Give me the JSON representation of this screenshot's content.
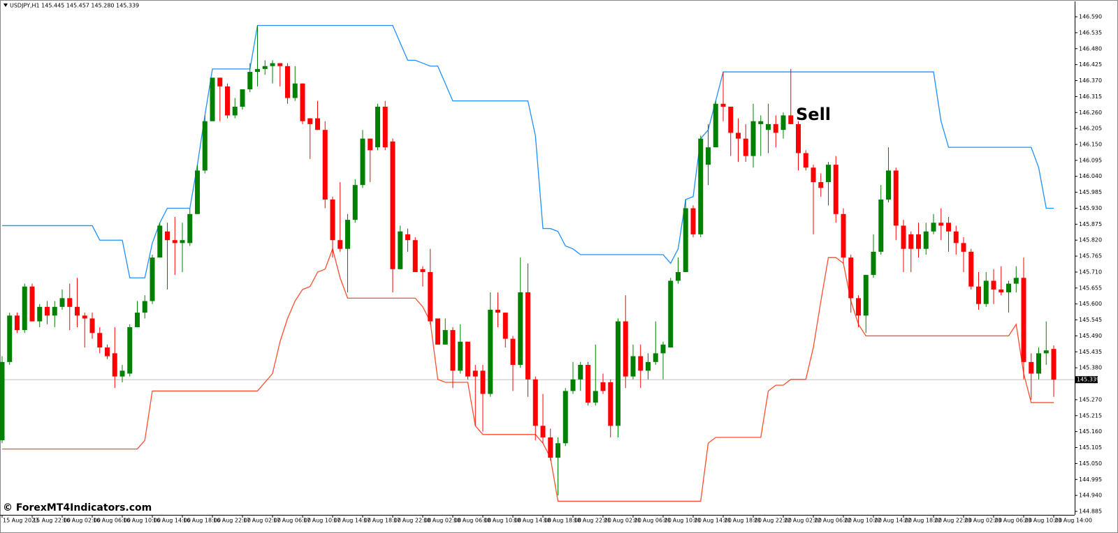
{
  "chart_data": {
    "type": "candlestick",
    "title": "USDJPY,H1  145.445 145.457 145.280 145.339",
    "annotations": [
      "Sell"
    ],
    "watermark": "© ForexMT4Indicators.com",
    "current_price": 145.339,
    "up_color": "#008000",
    "down_color": "#ff0000",
    "ylim": [
      144.873,
      146.643
    ],
    "yticks": [
      {
        "value": 146.59,
        "label": "146.590"
      },
      146.535,
      {
        "value": 146.48,
        "label": "146.480"
      },
      146.425,
      {
        "value": 146.37,
        "label": "146.370"
      },
      146.315,
      {
        "value": 146.26,
        "label": "146.260"
      },
      146.205,
      {
        "value": 146.15,
        "label": "146.150"
      },
      146.095,
      {
        "value": 146.04,
        "label": "146.040"
      },
      145.985,
      {
        "value": 145.93,
        "label": "145.930"
      },
      145.875,
      {
        "value": 145.82,
        "label": "145.820"
      },
      145.765,
      {
        "value": 145.71,
        "label": "145.710"
      },
      145.655,
      {
        "value": 145.6,
        "label": "145.600"
      },
      145.545,
      {
        "value": 145.49,
        "label": "145.490"
      },
      145.435,
      {
        "value": 145.38,
        "label": "145.380"
      },
      {
        "value": 145.27,
        "label": "145.270"
      },
      145.215,
      {
        "value": 145.16,
        "label": "145.160"
      },
      145.105,
      {
        "value": 145.05,
        "label": "145.050"
      },
      144.995,
      {
        "value": 144.94,
        "label": "144.940"
      },
      144.885
    ],
    "categories": [
      "15 Aug 2023",
      null,
      null,
      null,
      "15 Aug 22:00",
      null,
      null,
      null,
      "16 Aug 02:00",
      null,
      null,
      null,
      "16 Aug 06:00",
      null,
      null,
      null,
      "16 Aug 10:00",
      null,
      null,
      null,
      "16 Aug 14:00",
      null,
      null,
      null,
      "16 Aug 18:00",
      null,
      null,
      null,
      "16 Aug 22:00",
      null,
      null,
      null,
      "17 Aug 02:00",
      null,
      null,
      null,
      "17 Aug 06:00",
      null,
      null,
      null,
      "17 Aug 10:00",
      null,
      null,
      null,
      "17 Aug 14:00",
      null,
      null,
      null,
      "17 Aug 18:00",
      null,
      null,
      null,
      "17 Aug 22:00",
      null,
      null,
      null,
      "18 Aug 02:00",
      null,
      null,
      null,
      "18 Aug 06:00",
      null,
      null,
      null,
      "18 Aug 10:00",
      null,
      null,
      null,
      "18 Aug 14:00",
      null,
      null,
      null,
      "18 Aug 18:00",
      null,
      null,
      null,
      "18 Aug 22:00",
      null,
      null,
      null,
      "21 Aug 02:00",
      null,
      null,
      null,
      "21 Aug 06:00",
      null,
      null,
      null,
      "21 Aug 10:00",
      null,
      null,
      null,
      "21 Aug 14:00",
      null,
      null,
      null,
      "21 Aug 18:00",
      null,
      null,
      null,
      "21 Aug 22:00",
      null,
      null,
      null,
      "22 Aug 02:00",
      null,
      null,
      null,
      "22 Aug 06:00",
      null,
      null,
      null,
      "22 Aug 10:00",
      null,
      null,
      null,
      "22 Aug 14:00",
      null,
      null,
      null,
      "22 Aug 18:00",
      null,
      null,
      null,
      "22 Aug 22:00",
      null,
      null,
      null,
      "23 Aug 02:00",
      null,
      null,
      null,
      "23 Aug 06:00",
      null,
      null,
      null,
      "23 Aug 10:00",
      null,
      null,
      null,
      "23 Aug 14:00"
    ],
    "open": [
      145.13,
      145.4,
      145.56,
      145.51,
      145.66,
      145.54,
      145.59,
      145.56,
      145.59,
      145.62,
      145.59,
      145.56,
      145.55,
      145.5,
      145.45,
      145.43,
      145.35,
      145.36,
      145.52,
      145.57,
      145.61,
      145.76,
      145.85,
      145.82,
      145.81,
      145.81,
      145.91,
      146.06,
      146.23,
      146.38,
      146.35,
      146.25,
      146.28,
      146.34,
      146.4,
      146.41,
      146.42,
      146.43,
      146.42,
      146.31,
      146.36,
      146.24,
      146.24,
      146.2,
      145.96,
      145.82,
      145.79,
      145.89,
      146.01,
      146.17,
      146.14,
      146.28,
      146.16,
      145.72,
      145.84,
      145.82,
      145.72,
      145.71,
      145.55,
      145.46,
      145.51,
      145.37,
      145.47,
      145.37,
      145.37,
      145.29,
      145.58,
      145.57,
      145.48,
      145.39,
      145.64,
      145.34,
      145.18,
      145.14,
      145.07,
      145.12,
      145.3,
      145.34,
      145.39,
      145.26,
      145.33,
      145.33,
      145.18,
      145.54,
      145.35,
      145.42,
      145.37,
      145.4,
      145.43,
      145.45,
      145.68,
      145.71,
      145.93,
      145.84,
      146.08,
      146.14,
      146.29,
      146.28,
      146.19,
      146.17,
      146.11,
      146.22,
      146.2,
      146.22,
      146.2,
      146.25,
      146.22,
      146.12,
      146.07,
      146.02,
      146.02,
      146.08,
      145.91,
      145.76,
      145.62,
      145.56,
      145.7,
      145.78,
      145.96,
      146.06,
      145.87,
      145.84,
      145.84,
      145.79,
      145.85,
      145.88,
      145.88,
      145.85,
      145.81,
      145.78,
      145.66,
      145.6,
      145.68,
      145.65,
      145.64,
      145.67,
      145.69,
      145.4,
      145.36,
      145.43,
      145.445
    ],
    "high": [
      145.42,
      145.57,
      145.57,
      145.67,
      145.67,
      145.6,
      145.61,
      145.61,
      145.65,
      145.67,
      145.69,
      145.57,
      145.57,
      145.52,
      145.46,
      145.52,
      145.39,
      145.53,
      145.61,
      145.63,
      145.77,
      145.88,
      145.88,
      145.9,
      145.88,
      145.93,
      146.08,
      146.25,
      146.38,
      146.38,
      146.36,
      146.31,
      146.34,
      146.43,
      146.56,
      146.44,
      146.44,
      146.43,
      146.43,
      146.42,
      146.36,
      146.24,
      146.3,
      146.23,
      145.97,
      146.02,
      145.91,
      146.03,
      146.2,
      146.17,
      146.29,
      146.3,
      146.17,
      145.87,
      145.86,
      145.83,
      145.73,
      145.79,
      145.55,
      145.55,
      145.52,
      145.53,
      145.47,
      145.39,
      145.39,
      145.64,
      145.64,
      145.57,
      145.49,
      145.76,
      145.74,
      145.35,
      145.29,
      145.17,
      145.14,
      145.31,
      145.4,
      145.4,
      145.4,
      145.46,
      145.36,
      145.34,
      145.55,
      145.63,
      145.46,
      145.46,
      145.43,
      145.54,
      145.47,
      145.69,
      145.76,
      145.96,
      145.94,
      146.18,
      146.22,
      146.3,
      146.4,
      146.28,
      146.24,
      146.22,
      146.29,
      146.25,
      146.29,
      146.25,
      146.26,
      146.41,
      146.23,
      146.13,
      146.08,
      146.05,
      146.09,
      146.11,
      145.93,
      145.77,
      145.63,
      145.7,
      145.84,
      146.01,
      146.14,
      146.07,
      145.89,
      145.85,
      145.88,
      145.88,
      145.91,
      145.93,
      145.9,
      145.87,
      145.83,
      145.79,
      145.71,
      145.71,
      145.72,
      145.73,
      145.68,
      145.73,
      145.76,
      145.43,
      145.45,
      145.54,
      145.457
    ],
    "low": [
      145.12,
      145.39,
      145.5,
      145.5,
      145.54,
      145.52,
      145.53,
      145.52,
      145.58,
      145.51,
      145.52,
      145.45,
      145.48,
      145.43,
      145.41,
      145.31,
      145.33,
      145.35,
      145.52,
      145.55,
      145.6,
      145.76,
      145.65,
      145.7,
      145.71,
      145.8,
      145.91,
      146.05,
      146.23,
      146.23,
      146.24,
      146.24,
      146.27,
      146.33,
      146.35,
      146.39,
      146.36,
      146.35,
      146.29,
      146.3,
      146.22,
      146.1,
      146.2,
      145.93,
      145.76,
      145.78,
      145.64,
      145.88,
      146.0,
      146.02,
      146.13,
      146.13,
      145.64,
      145.72,
      145.78,
      145.71,
      145.66,
      145.53,
      145.46,
      145.46,
      145.31,
      145.36,
      145.34,
      145.18,
      145.16,
      145.28,
      145.52,
      145.45,
      145.3,
      145.38,
      145.28,
      145.13,
      145.12,
      145.06,
      144.94,
      145.11,
      145.29,
      145.3,
      145.25,
      145.25,
      145.29,
      145.14,
      145.14,
      145.31,
      145.34,
      145.31,
      145.34,
      145.39,
      145.34,
      145.45,
      145.67,
      145.71,
      145.83,
      145.83,
      146.01,
      146.14,
      146.23,
      146.11,
      146.09,
      146.09,
      146.07,
      146.11,
      146.12,
      146.14,
      146.17,
      146.22,
      146.06,
      146.06,
      145.84,
      145.97,
      145.94,
      145.88,
      145.74,
      145.57,
      145.52,
      145.5,
      145.69,
      145.77,
      145.95,
      145.82,
      145.71,
      145.71,
      145.76,
      145.77,
      145.84,
      145.82,
      145.78,
      145.77,
      145.71,
      145.65,
      145.58,
      145.59,
      145.6,
      145.63,
      145.57,
      145.64,
      145.34,
      145.27,
      145.34,
      145.39,
      145.28
    ],
    "close": [
      145.4,
      145.56,
      145.51,
      145.66,
      145.54,
      145.59,
      145.56,
      145.59,
      145.62,
      145.59,
      145.56,
      145.55,
      145.5,
      145.45,
      145.42,
      145.35,
      145.37,
      145.52,
      145.57,
      145.61,
      145.76,
      145.87,
      145.82,
      145.81,
      145.82,
      145.91,
      146.06,
      146.23,
      146.38,
      146.35,
      146.25,
      146.28,
      146.34,
      146.4,
      146.41,
      146.42,
      146.43,
      146.42,
      146.31,
      146.36,
      146.23,
      146.22,
      146.2,
      145.96,
      145.82,
      145.79,
      145.89,
      146.01,
      146.17,
      146.13,
      146.28,
      146.14,
      145.72,
      145.85,
      145.82,
      145.71,
      145.71,
      145.54,
      145.46,
      145.51,
      145.37,
      145.47,
      145.35,
      145.35,
      145.29,
      145.58,
      145.57,
      145.48,
      145.39,
      145.64,
      145.34,
      145.18,
      145.14,
      145.07,
      145.12,
      145.3,
      145.34,
      145.39,
      145.26,
      145.3,
      145.3,
      145.18,
      145.54,
      145.35,
      145.42,
      145.37,
      145.4,
      145.43,
      145.46,
      145.68,
      145.71,
      145.93,
      145.84,
      146.17,
      146.14,
      146.29,
      146.28,
      146.19,
      146.17,
      146.11,
      146.23,
      146.23,
      146.22,
      146.19,
      146.25,
      146.22,
      146.12,
      146.07,
      146.02,
      146.0,
      146.08,
      145.91,
      145.76,
      145.62,
      145.56,
      145.7,
      145.78,
      145.96,
      146.06,
      145.87,
      145.79,
      145.79,
      145.79,
      145.85,
      145.88,
      145.87,
      145.85,
      145.81,
      145.78,
      145.66,
      145.6,
      145.68,
      145.65,
      145.64,
      145.67,
      145.69,
      145.4,
      145.36,
      145.43,
      145.44,
      145.339
    ],
    "series": [
      {
        "color": "#1e90ff",
        "values": [
          145.87,
          145.87,
          145.87,
          145.87,
          145.87,
          145.87,
          145.87,
          145.87,
          145.87,
          145.87,
          145.87,
          145.87,
          145.87,
          145.82,
          145.82,
          145.82,
          145.82,
          145.69,
          145.69,
          145.69,
          145.81,
          145.88,
          145.93,
          145.93,
          145.93,
          145.93,
          146.08,
          146.25,
          146.41,
          146.41,
          146.41,
          146.41,
          146.41,
          146.41,
          146.56,
          146.56,
          146.56,
          146.56,
          146.56,
          146.56,
          146.56,
          146.56,
          146.56,
          146.56,
          146.56,
          146.56,
          146.56,
          146.56,
          146.56,
          146.56,
          146.56,
          146.56,
          146.56,
          146.5,
          146.44,
          146.44,
          146.43,
          146.42,
          146.42,
          146.36,
          146.3,
          146.3,
          146.3,
          146.3,
          146.3,
          146.3,
          146.3,
          146.3,
          146.3,
          146.3,
          146.3,
          146.18,
          145.86,
          145.86,
          145.85,
          145.8,
          145.79,
          145.77,
          145.77,
          145.77,
          145.77,
          145.77,
          145.77,
          145.77,
          145.77,
          145.77,
          145.77,
          145.77,
          145.77,
          145.74,
          145.79,
          145.96,
          145.97,
          146.17,
          146.2,
          146.3,
          146.4,
          146.4,
          146.4,
          146.4,
          146.4,
          146.4,
          146.4,
          146.4,
          146.4,
          146.4,
          146.4,
          146.4,
          146.4,
          146.4,
          146.4,
          146.4,
          146.4,
          146.4,
          146.4,
          146.4,
          146.4,
          146.4,
          146.4,
          146.4,
          146.4,
          146.4,
          146.4,
          146.4,
          146.4,
          146.23,
          146.14,
          146.14,
          146.14,
          146.14,
          146.14,
          146.14,
          146.14,
          146.14,
          146.14,
          146.14,
          146.14,
          146.14,
          146.07,
          145.93,
          145.93
        ]
      },
      {
        "color": "#ff4d2e",
        "values": [
          145.1,
          145.1,
          145.1,
          145.1,
          145.1,
          145.1,
          145.1,
          145.1,
          145.1,
          145.1,
          145.1,
          145.1,
          145.1,
          145.1,
          145.1,
          145.1,
          145.1,
          145.1,
          145.1,
          145.13,
          145.3,
          145.3,
          145.3,
          145.3,
          145.3,
          145.3,
          145.3,
          145.3,
          145.3,
          145.3,
          145.3,
          145.3,
          145.3,
          145.3,
          145.3,
          145.33,
          145.36,
          145.47,
          145.55,
          145.61,
          145.65,
          145.66,
          145.71,
          145.72,
          145.79,
          145.69,
          145.62,
          145.62,
          145.62,
          145.62,
          145.62,
          145.62,
          145.62,
          145.62,
          145.62,
          145.62,
          145.59,
          145.54,
          145.34,
          145.33,
          145.33,
          145.33,
          145.33,
          145.18,
          145.15,
          145.15,
          145.15,
          145.15,
          145.15,
          145.15,
          145.15,
          145.15,
          145.12,
          145.07,
          144.92,
          144.92,
          144.92,
          144.92,
          144.92,
          144.92,
          144.92,
          144.92,
          144.92,
          144.92,
          144.92,
          144.92,
          144.92,
          144.92,
          144.92,
          144.92,
          144.92,
          144.92,
          144.92,
          144.92,
          145.12,
          145.14,
          145.14,
          145.14,
          145.14,
          145.14,
          145.14,
          145.14,
          145.3,
          145.32,
          145.32,
          145.34,
          145.34,
          145.34,
          145.45,
          145.61,
          145.76,
          145.76,
          145.74,
          145.61,
          145.53,
          145.49,
          145.49,
          145.49,
          145.49,
          145.49,
          145.49,
          145.49,
          145.49,
          145.49,
          145.49,
          145.49,
          145.49,
          145.49,
          145.49,
          145.49,
          145.49,
          145.49,
          145.49,
          145.49,
          145.49,
          145.53,
          145.36,
          145.26,
          145.26,
          145.26,
          145.26
        ]
      }
    ]
  }
}
